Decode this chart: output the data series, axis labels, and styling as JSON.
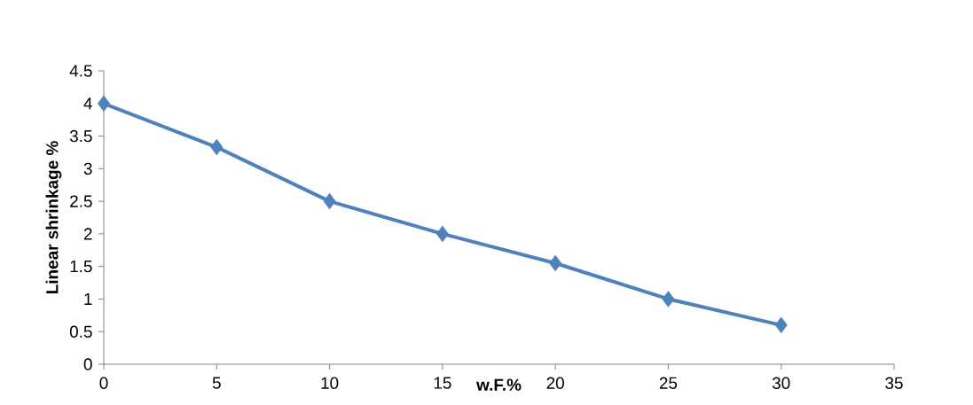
{
  "chart_data": {
    "type": "line",
    "xlabel": "w.F.%",
    "ylabel": "Linear shrinkage %",
    "x": [
      0,
      5,
      10,
      15,
      20,
      25,
      30
    ],
    "values": [
      4,
      3.33,
      2.5,
      2,
      1.55,
      1,
      0.6
    ],
    "color": "#4f81bd",
    "marker": "diamond",
    "line_style": "solid",
    "grid": false,
    "xlim": [
      0,
      35
    ],
    "xticks": [
      0,
      5,
      10,
      15,
      20,
      25,
      30,
      35
    ],
    "ylim": [
      0,
      4.5
    ],
    "yticks": [
      0,
      0.5,
      1,
      1.5,
      2,
      2.5,
      3,
      3.5,
      4,
      4.5
    ]
  }
}
